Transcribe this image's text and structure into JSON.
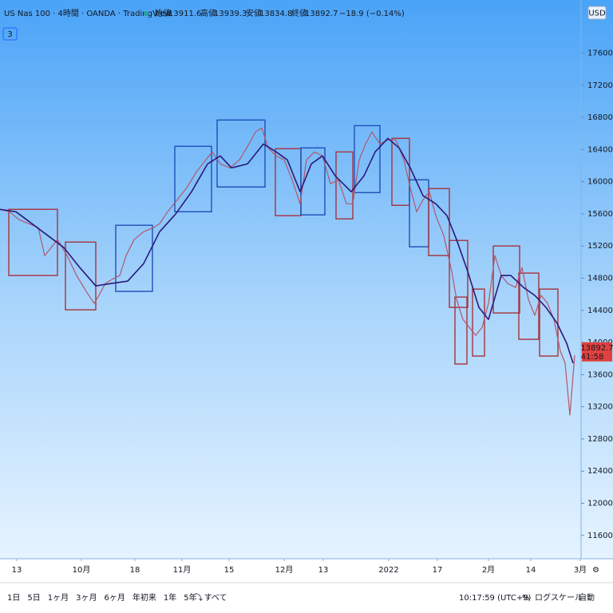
{
  "header": {
    "symbol": "US Nas 100 · 4時間 · OANDA · TradingView",
    "open_label": "始値",
    "open": "13911.6",
    "high_label": "高値",
    "high": "13939.3",
    "low_label": "安値",
    "low": "13834.8",
    "close_label": "終値",
    "close": "13892.7",
    "change": "−18.9 (−0.14%)",
    "currency": "USD",
    "indicator_count": "3"
  },
  "chart_data": {
    "type": "line",
    "xlim": [
      0,
      728
    ],
    "ylim": [
      11310,
      18240
    ],
    "xticks": [
      {
        "value": 21,
        "label": "13"
      },
      {
        "value": 102,
        "label": "10月"
      },
      {
        "value": 169,
        "label": "18"
      },
      {
        "value": 228,
        "label": "11月"
      },
      {
        "value": 287,
        "label": "15"
      },
      {
        "value": 356,
        "label": "12月"
      },
      {
        "value": 405,
        "label": "13"
      },
      {
        "value": 487,
        "label": "2022"
      },
      {
        "value": 548,
        "label": "17"
      },
      {
        "value": 612,
        "label": "2月"
      },
      {
        "value": 665,
        "label": "14"
      },
      {
        "value": 727,
        "label": "3月"
      }
    ],
    "yticks": [
      {
        "value": 11600,
        "label": "11600.0"
      },
      {
        "value": 12000,
        "label": "12000.0"
      },
      {
        "value": 12400,
        "label": "12400.0"
      },
      {
        "value": 12800,
        "label": "12800.0"
      },
      {
        "value": 13200,
        "label": "13200.0"
      },
      {
        "value": 13600,
        "label": "13600.0"
      },
      {
        "value": 14000,
        "label": "14000.0"
      },
      {
        "value": 14400,
        "label": "14400.0"
      },
      {
        "value": 14800,
        "label": "14800.0"
      },
      {
        "value": 15200,
        "label": "15200.0"
      },
      {
        "value": 15600,
        "label": "15600.0"
      },
      {
        "value": 16000,
        "label": "16000.0"
      },
      {
        "value": 16400,
        "label": "16400.0"
      },
      {
        "value": 16800,
        "label": "16800.0"
      },
      {
        "value": 17200,
        "label": "17200.0"
      },
      {
        "value": 17600,
        "label": "17600.0"
      }
    ],
    "series": [
      {
        "color": "#b0586c",
        "x": [
          0,
          12,
          24,
          36,
          48,
          56,
          64,
          72,
          84,
          96,
          108,
          118,
          124,
          132,
          140,
          150,
          158,
          168,
          180,
          192,
          200,
          210,
          222,
          234,
          246,
          258,
          266,
          276,
          288,
          300,
          312,
          320,
          328,
          336,
          346,
          356,
          366,
          376,
          384,
          394,
          404,
          414,
          424,
          434,
          442,
          450,
          458,
          466,
          476,
          486,
          496,
          506,
          514,
          522,
          530,
          538,
          546,
          556,
          566,
          572,
          580,
          588,
          596,
          604,
          612,
          620,
          628,
          636,
          646,
          654,
          662,
          670,
          678,
          686,
          694,
          702,
          708,
          714,
          718,
          720
        ],
        "values": [
          15656,
          15626,
          15527,
          15478,
          15428,
          15081,
          15180,
          15279,
          15081,
          14833,
          14635,
          14486,
          14585,
          14734,
          14783,
          14833,
          15081,
          15279,
          15378,
          15428,
          15478,
          15626,
          15775,
          15924,
          16122,
          16271,
          16370,
          16221,
          16172,
          16271,
          16469,
          16618,
          16668,
          16420,
          16321,
          16271,
          16023,
          15725,
          16271,
          16370,
          16321,
          15973,
          16023,
          15725,
          15725,
          16271,
          16469,
          16618,
          16469,
          16519,
          16519,
          16271,
          15924,
          15626,
          15775,
          15874,
          15577,
          15329,
          14882,
          14535,
          14287,
          14188,
          14089,
          14188,
          14486,
          15081,
          14833,
          14734,
          14684,
          14932,
          14535,
          14337,
          14585,
          14486,
          14287,
          13891,
          13742,
          13097,
          13593,
          13841
        ]
      },
      {
        "color": "#2b1a7a",
        "x": [
          0,
          20,
          40,
          60,
          80,
          100,
          120,
          140,
          160,
          180,
          200,
          220,
          240,
          260,
          276,
          290,
          310,
          330,
          346,
          360,
          376,
          390,
          404,
          420,
          440,
          456,
          470,
          486,
          500,
          514,
          530,
          546,
          560,
          572,
          586,
          600,
          612,
          628,
          640,
          656,
          670,
          684,
          698,
          710,
          718
        ],
        "values": [
          15656,
          15626,
          15478,
          15329,
          15180,
          14932,
          14704,
          14734,
          14763,
          14982,
          15378,
          15597,
          15875,
          16221,
          16321,
          16172,
          16221,
          16469,
          16370,
          16271,
          15875,
          16221,
          16321,
          16073,
          15875,
          16073,
          16370,
          16539,
          16420,
          16172,
          15825,
          15725,
          15577,
          15279,
          14882,
          14436,
          14287,
          14833,
          14833,
          14684,
          14585,
          14436,
          14238,
          13990,
          13742
        ]
      }
    ],
    "boxes": [
      {
        "x0": 11,
        "x1": 72,
        "top": 15656,
        "bottom": 14833,
        "color": "#a8323e"
      },
      {
        "x0": 82,
        "x1": 120,
        "top": 15249,
        "bottom": 14406,
        "color": "#a8323e"
      },
      {
        "x0": 145,
        "x1": 191,
        "top": 15458,
        "bottom": 14635,
        "color": "#1f4fb8"
      },
      {
        "x0": 219,
        "x1": 265,
        "top": 16440,
        "bottom": 15626,
        "color": "#1f4fb8"
      },
      {
        "x0": 272,
        "x1": 332,
        "top": 16767,
        "bottom": 15934,
        "color": "#1f4fb8"
      },
      {
        "x0": 345,
        "x1": 377,
        "top": 16410,
        "bottom": 15577,
        "color": "#a8323e"
      },
      {
        "x0": 377,
        "x1": 407,
        "top": 16420,
        "bottom": 15587,
        "color": "#1f4fb8"
      },
      {
        "x0": 421,
        "x1": 442,
        "top": 16370,
        "bottom": 15537,
        "color": "#a8323e"
      },
      {
        "x0": 444,
        "x1": 476,
        "top": 16697,
        "bottom": 15864,
        "color": "#1f4fb8"
      },
      {
        "x0": 491,
        "x1": 513,
        "top": 16539,
        "bottom": 15706,
        "color": "#a8323e"
      },
      {
        "x0": 513,
        "x1": 537,
        "top": 16023,
        "bottom": 15190,
        "color": "#1f4fb8"
      },
      {
        "x0": 537,
        "x1": 563,
        "top": 15914,
        "bottom": 15081,
        "color": "#a8323e"
      },
      {
        "x0": 563,
        "x1": 586,
        "top": 15269,
        "bottom": 14436,
        "color": "#a8323e"
      },
      {
        "x0": 570,
        "x1": 585,
        "top": 14565,
        "bottom": 13732,
        "color": "#a8323e"
      },
      {
        "x0": 592,
        "x1": 607,
        "top": 14664,
        "bottom": 13831,
        "color": "#a8323e"
      },
      {
        "x0": 618,
        "x1": 651,
        "top": 15200,
        "bottom": 14367,
        "color": "#a8323e"
      },
      {
        "x0": 650,
        "x1": 675,
        "top": 14863,
        "bottom": 14039,
        "color": "#a8323e"
      },
      {
        "x0": 676,
        "x1": 699,
        "top": 14664,
        "bottom": 13831,
        "color": "#a8323e"
      }
    ],
    "last_price": 13892.7,
    "countdown": "41:58",
    "last_price_color": "#e0413f"
  },
  "toolbar": {
    "ranges": [
      "1日",
      "5日",
      "1ヶ月",
      "3ヶ月",
      "6ヶ月",
      "年初来",
      "1年",
      "5年",
      "すべて"
    ],
    "time": "10:17:59 (UTC+9)",
    "percent": "%",
    "log": "ログスケール",
    "auto": "自動"
  }
}
